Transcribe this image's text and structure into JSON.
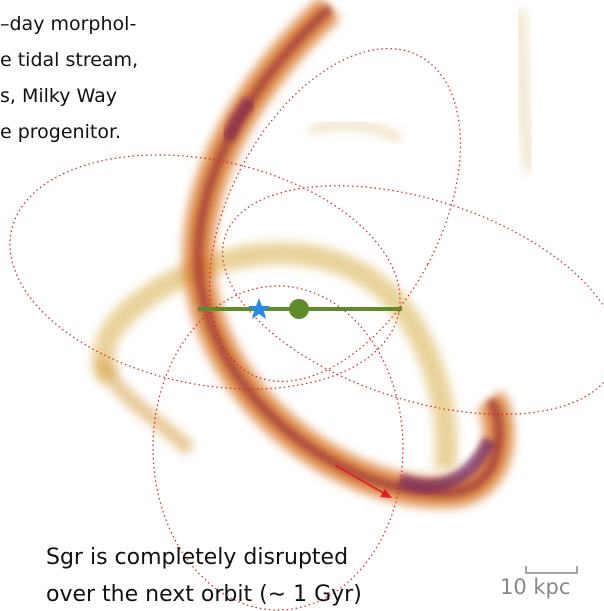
{
  "caption_lines": [
    "–day morphol-",
    "e tidal stream,",
    "s, Milky Way",
    "e progenitor."
  ],
  "bottom_text": [
    "Sgr is completely disrupted",
    "over the next orbit (∼ 1 Gyr)"
  ],
  "scale_label": "10 kpc"
}
